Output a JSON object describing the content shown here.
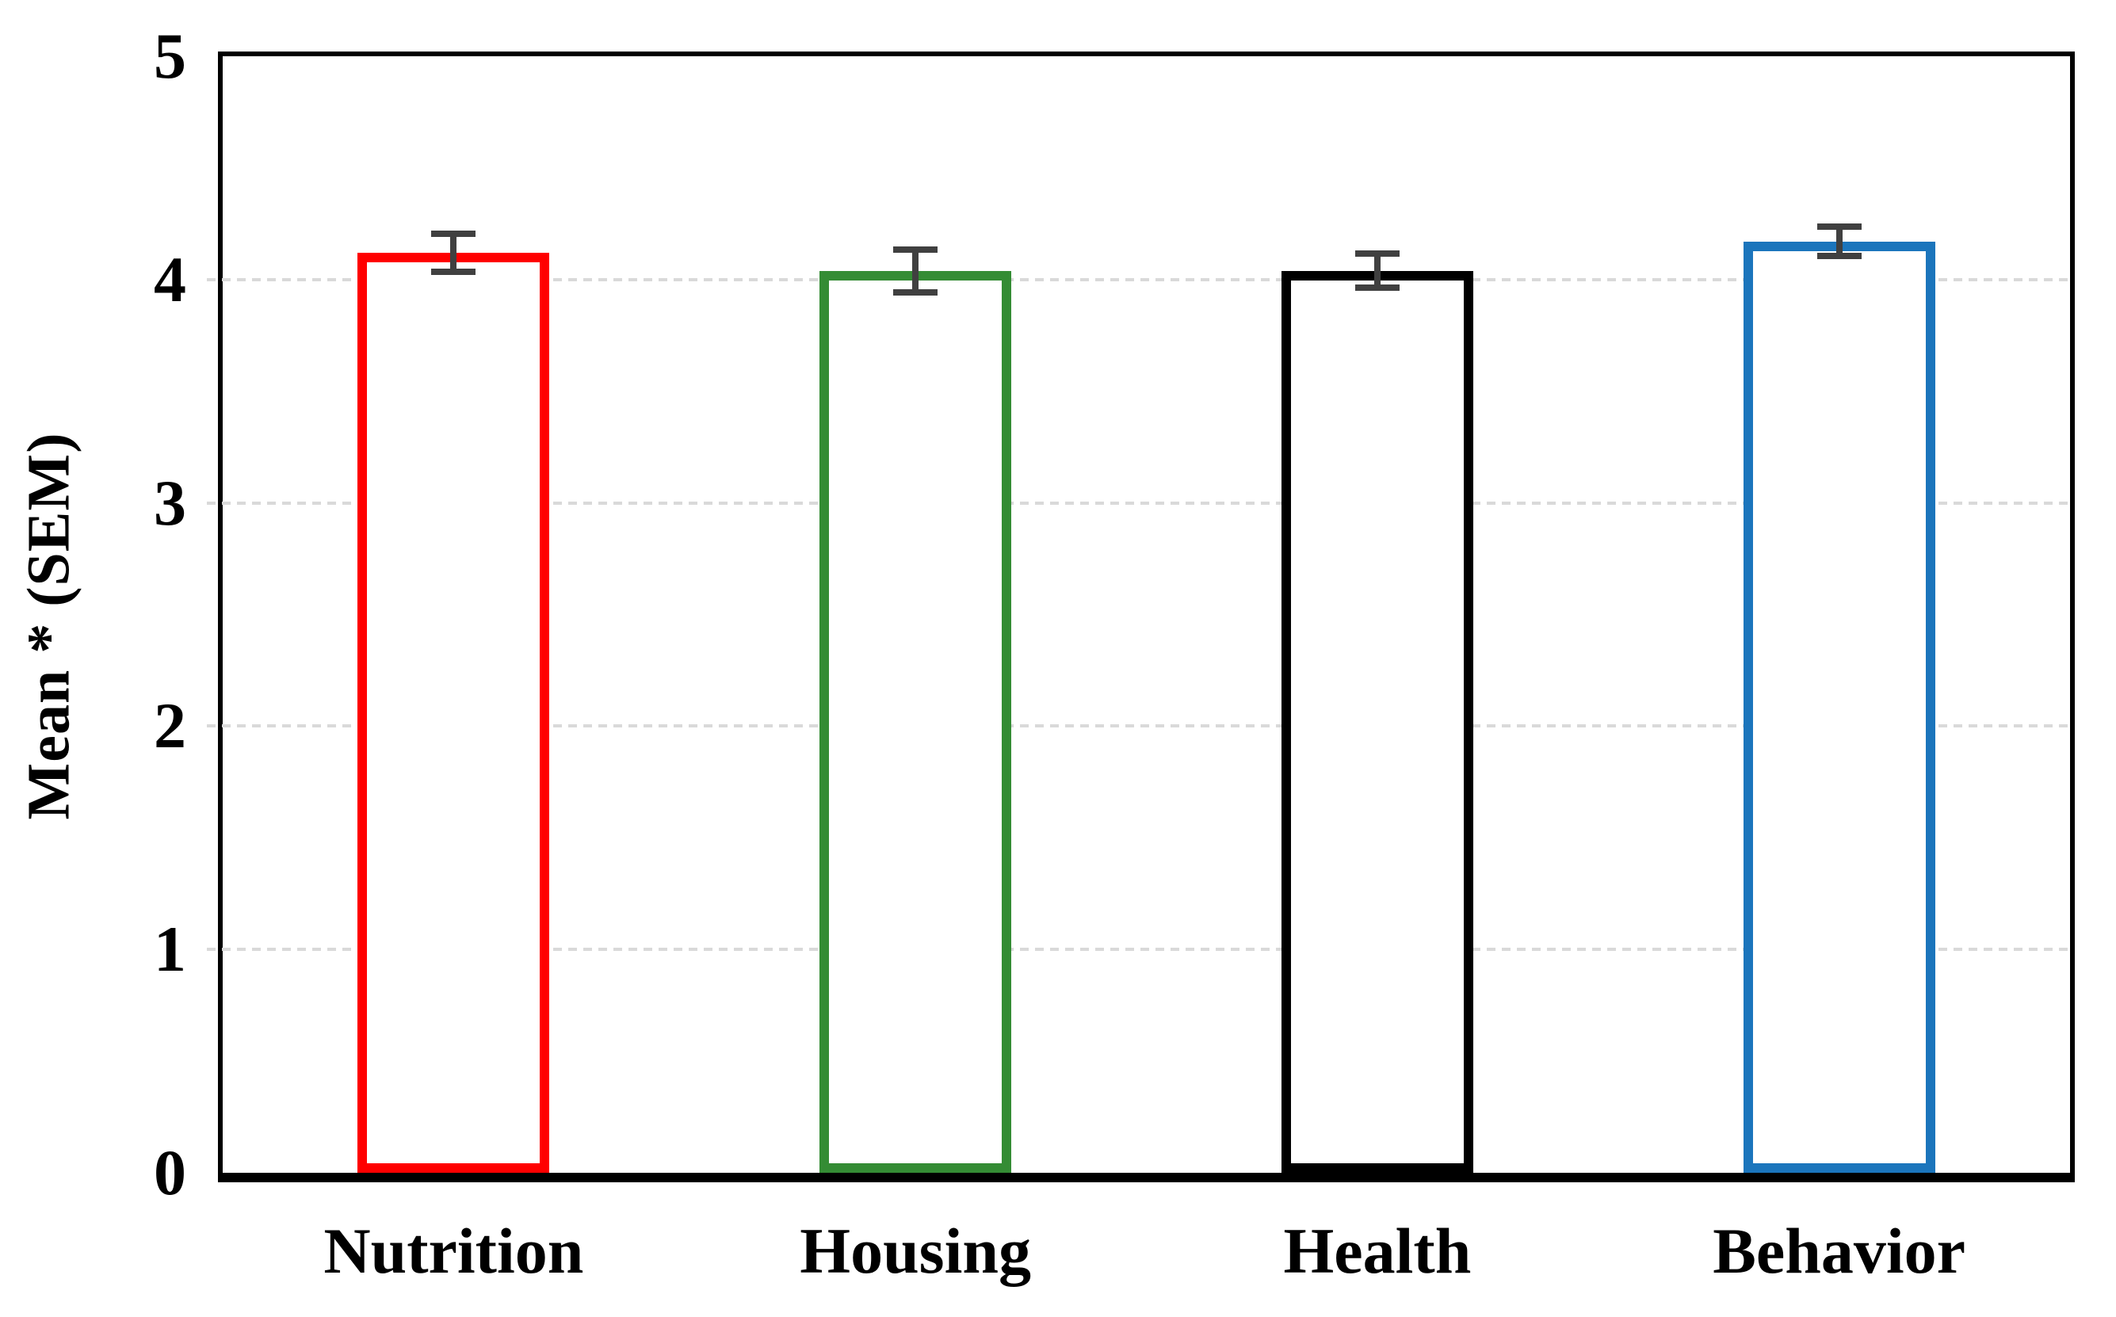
{
  "chart_data": {
    "type": "bar",
    "title": "",
    "xlabel": "",
    "ylabel": "Mean * (SEM)",
    "categories": [
      "Nutrition",
      "Housing",
      "Health",
      "Behavior"
    ],
    "values": [
      4.12,
      4.04,
      4.04,
      4.17
    ],
    "errors": [
      0.1,
      0.11,
      0.09,
      0.08
    ],
    "bar_colors": [
      "#ff0000",
      "#348c34",
      "#000000",
      "#1b75bc"
    ],
    "bar_fill": "#ffffff",
    "ylim": [
      0,
      5
    ],
    "yticks": [
      0,
      1,
      2,
      3,
      4,
      5
    ],
    "grid": "horizontal-gridlines-at-1-2-3-4",
    "gridline_values": [
      1,
      2,
      3,
      4
    ],
    "gridline_color": "#d9d9d9",
    "error_bar_color": "#404040",
    "axis_color": "#000000",
    "legend": "none"
  }
}
